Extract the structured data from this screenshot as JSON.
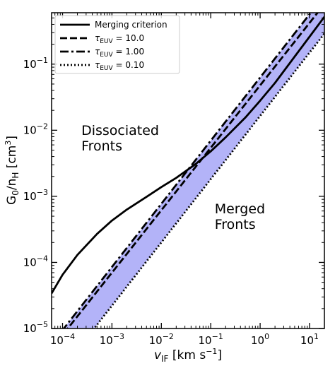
{
  "chart_data": {
    "type": "line",
    "title": "",
    "xlabel": {
      "symbol": "v",
      "sub": "IF",
      "units": "[km s",
      "units_exp": "−1",
      "units_close": "]"
    },
    "ylabel": {
      "main": "G",
      "sub0": "0",
      "slash": "/n",
      "sub1": "H",
      "units": "[cm",
      "units_exp": "3",
      "units_close": "]"
    },
    "x_scale": "log",
    "y_scale": "log",
    "xlim": [
      6e-05,
      20
    ],
    "ylim": [
      1e-05,
      0.6
    ],
    "x_ticks": [
      {
        "value": 0.0001,
        "base": "10",
        "exp": "−4"
      },
      {
        "value": 0.001,
        "base": "10",
        "exp": "−3"
      },
      {
        "value": 0.01,
        "base": "10",
        "exp": "−2"
      },
      {
        "value": 0.1,
        "base": "10",
        "exp": "−1"
      },
      {
        "value": 1,
        "base": "10",
        "exp": "0"
      },
      {
        "value": 10,
        "base": "10",
        "exp": "1"
      }
    ],
    "y_ticks": [
      {
        "value": 1e-05,
        "base": "10",
        "exp": "−5"
      },
      {
        "value": 0.0001,
        "base": "10",
        "exp": "−4"
      },
      {
        "value": 0.001,
        "base": "10",
        "exp": "−3"
      },
      {
        "value": 0.01,
        "base": "10",
        "exp": "−2"
      },
      {
        "value": 0.1,
        "base": "10",
        "exp": "−1"
      }
    ],
    "legend_position": "top-left",
    "series": [
      {
        "name": "Merging criterion",
        "style": "solid",
        "x": [
          6e-05,
          0.0001,
          0.0002,
          0.0005,
          0.001,
          0.002,
          0.005,
          0.01,
          0.02,
          0.05,
          0.1,
          0.2,
          0.5,
          1,
          2,
          5,
          10,
          20
        ],
        "y": [
          3.4e-05,
          6.5e-05,
          0.00013,
          0.00027,
          0.00043,
          0.00063,
          0.00098,
          0.00138,
          0.0019,
          0.0031,
          0.0048,
          0.0078,
          0.0155,
          0.028,
          0.052,
          0.13,
          0.26,
          0.52
        ]
      },
      {
        "name": {
          "tau": "τ",
          "sub": "EUV",
          "value": " = 10.0"
        },
        "style": "dashed",
        "x": [
          6e-05,
          20
        ],
        "y": [
          4.9e-06,
          0.81
        ]
      },
      {
        "name": {
          "tau": "τ",
          "sub": "EUV",
          "value": " = 1.00"
        },
        "style": "dashdot",
        "x": [
          6e-05,
          20
        ],
        "y": [
          5.8e-06,
          1.1
        ]
      },
      {
        "name": {
          "tau": "τ",
          "sub": "EUV",
          "value": " = 0.10"
        },
        "style": "dotted",
        "x": [
          6e-05,
          20
        ],
        "y": [
          1.5e-06,
          0.29
        ]
      }
    ],
    "shaded_band": {
      "color": "#b3b3f8",
      "lower_series": 3,
      "upper_series": 2
    },
    "annotations": [
      {
        "lines": [
          "Dissociated",
          "Fronts"
        ],
        "x": 0.00024,
        "y": 0.0085
      },
      {
        "lines": [
          "Merged",
          "Fronts"
        ],
        "x": 0.12,
        "y": 0.00055
      }
    ]
  }
}
